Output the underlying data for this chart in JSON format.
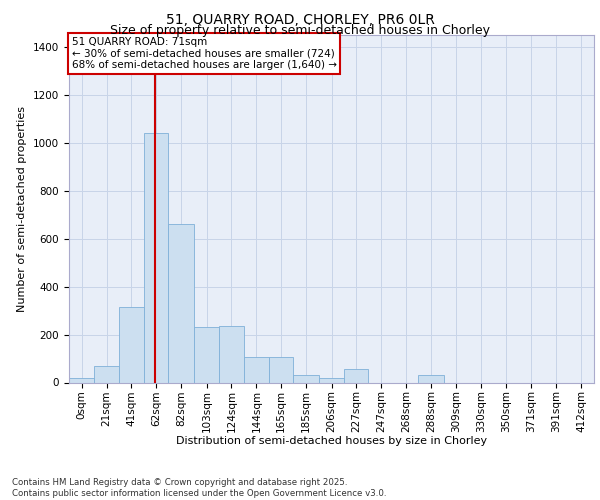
{
  "title_line1": "51, QUARRY ROAD, CHORLEY, PR6 0LR",
  "title_line2": "Size of property relative to semi-detached houses in Chorley",
  "xlabel": "Distribution of semi-detached houses by size in Chorley",
  "ylabel": "Number of semi-detached properties",
  "footer_line1": "Contains HM Land Registry data © Crown copyright and database right 2025.",
  "footer_line2": "Contains public sector information licensed under the Open Government Licence v3.0.",
  "annotation_line1": "51 QUARRY ROAD: 71sqm",
  "annotation_line2": "← 30% of semi-detached houses are smaller (724)",
  "annotation_line3": "68% of semi-detached houses are larger (1,640) →",
  "property_size": 71,
  "bar_categories": [
    "0sqm",
    "21sqm",
    "41sqm",
    "62sqm",
    "82sqm",
    "103sqm",
    "124sqm",
    "144sqm",
    "165sqm",
    "185sqm",
    "206sqm",
    "227sqm",
    "247sqm",
    "268sqm",
    "288sqm",
    "309sqm",
    "330sqm",
    "350sqm",
    "371sqm",
    "391sqm",
    "412sqm"
  ],
  "bar_left_edges": [
    0,
    21,
    41,
    62,
    82,
    103,
    124,
    144,
    165,
    185,
    206,
    227,
    247,
    268,
    288,
    309,
    330,
    350,
    371,
    391,
    412
  ],
  "bar_widths": [
    21,
    20,
    21,
    20,
    21,
    21,
    20,
    21,
    20,
    21,
    21,
    20,
    21,
    20,
    21,
    21,
    20,
    21,
    20,
    21,
    21
  ],
  "bar_heights": [
    20,
    70,
    315,
    1040,
    660,
    230,
    235,
    105,
    105,
    30,
    20,
    55,
    0,
    0,
    30,
    0,
    0,
    0,
    0,
    0,
    0
  ],
  "bar_color": "#ccdff0",
  "bar_edge_color": "#7fb0d8",
  "grid_color": "#c8d4e8",
  "bg_color": "#e8eef8",
  "vline_color": "#cc0000",
  "vline_x": 71,
  "xlim_max": 433,
  "ylim": [
    0,
    1450
  ],
  "yticks": [
    0,
    200,
    400,
    600,
    800,
    1000,
    1200,
    1400
  ],
  "annotation_box_edge_color": "#cc0000",
  "annotation_box_fill": "#ffffff",
  "title1_fontsize": 10,
  "title2_fontsize": 9,
  "ylabel_fontsize": 8,
  "xlabel_fontsize": 8,
  "tick_fontsize": 7.5,
  "ann_fontsize": 7.5
}
